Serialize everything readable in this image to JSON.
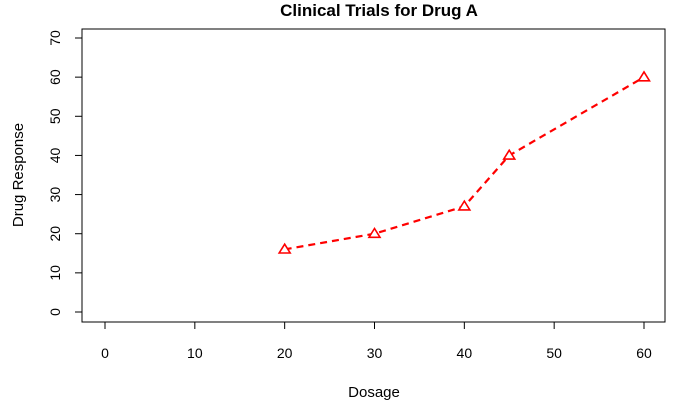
{
  "chart_data": {
    "type": "line",
    "title": "Clinical Trials for Drug A",
    "xlabel": "Dosage",
    "ylabel": "Drug Response",
    "xlim": [
      0,
      60
    ],
    "ylim": [
      0,
      70
    ],
    "x_ticks": [
      0,
      10,
      20,
      30,
      40,
      50,
      60
    ],
    "y_ticks": [
      0,
      10,
      20,
      30,
      40,
      50,
      60,
      70
    ],
    "grid": false,
    "legend": "none",
    "series": [
      {
        "x": [
          20,
          30,
          40,
          45,
          60
        ],
        "y": [
          16,
          20,
          27,
          40,
          60
        ],
        "color": "#ff0000",
        "line_style": "dashed",
        "marker": "triangle"
      }
    ]
  }
}
